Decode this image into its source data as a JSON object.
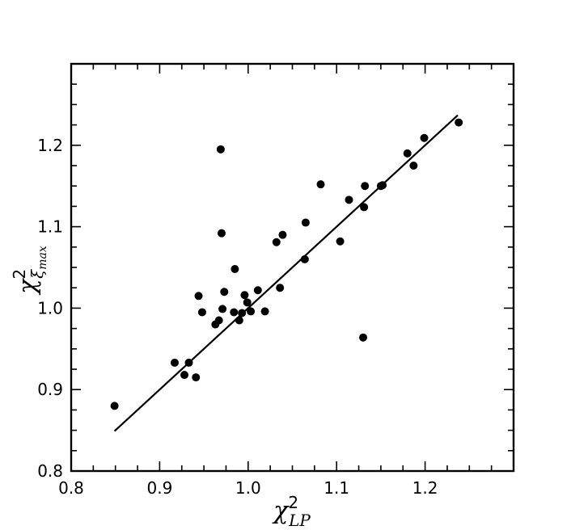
{
  "chart_data": {
    "type": "scatter",
    "xlabel": {
      "base": "χ",
      "sup": "2",
      "sub": "LP"
    },
    "ylabel": {
      "base": "χ",
      "sup": "2",
      "sub": "ξ",
      "subsub": "max"
    },
    "xlim": [
      0.8,
      1.3
    ],
    "ylim": [
      0.8,
      1.3
    ],
    "xticks": [
      "0.8",
      "0.9",
      "1.0",
      "1.1",
      "1.2"
    ],
    "yticks": [
      "0.8",
      "0.9",
      "1.0",
      "1.1",
      "1.2"
    ],
    "grid": false,
    "marker_color": "#000000",
    "points": [
      {
        "x": 0.849,
        "y": 0.88
      },
      {
        "x": 0.917,
        "y": 0.933
      },
      {
        "x": 0.928,
        "y": 0.918
      },
      {
        "x": 0.933,
        "y": 0.933
      },
      {
        "x": 0.941,
        "y": 0.915
      },
      {
        "x": 0.944,
        "y": 1.015
      },
      {
        "x": 0.948,
        "y": 0.995
      },
      {
        "x": 0.963,
        "y": 0.98
      },
      {
        "x": 0.967,
        "y": 0.985
      },
      {
        "x": 0.969,
        "y": 1.195
      },
      {
        "x": 0.97,
        "y": 1.092
      },
      {
        "x": 0.971,
        "y": 0.999
      },
      {
        "x": 0.973,
        "y": 1.02
      },
      {
        "x": 0.984,
        "y": 0.995
      },
      {
        "x": 0.985,
        "y": 1.048
      },
      {
        "x": 0.99,
        "y": 0.985
      },
      {
        "x": 0.993,
        "y": 0.994
      },
      {
        "x": 0.996,
        "y": 1.016
      },
      {
        "x": 0.999,
        "y": 1.007
      },
      {
        "x": 1.003,
        "y": 0.996
      },
      {
        "x": 1.011,
        "y": 1.022
      },
      {
        "x": 1.019,
        "y": 0.996
      },
      {
        "x": 1.032,
        "y": 1.081
      },
      {
        "x": 1.036,
        "y": 1.025
      },
      {
        "x": 1.039,
        "y": 1.09
      },
      {
        "x": 1.064,
        "y": 1.06
      },
      {
        "x": 1.065,
        "y": 1.105
      },
      {
        "x": 1.082,
        "y": 1.152
      },
      {
        "x": 1.104,
        "y": 1.082
      },
      {
        "x": 1.114,
        "y": 1.133
      },
      {
        "x": 1.13,
        "y": 0.964
      },
      {
        "x": 1.131,
        "y": 1.124
      },
      {
        "x": 1.132,
        "y": 1.15
      },
      {
        "x": 1.15,
        "y": 1.15
      },
      {
        "x": 1.152,
        "y": 1.151
      },
      {
        "x": 1.18,
        "y": 1.19
      },
      {
        "x": 1.187,
        "y": 1.175
      },
      {
        "x": 1.199,
        "y": 1.209
      },
      {
        "x": 1.238,
        "y": 1.228
      }
    ],
    "fit_line": {
      "x": [
        0.849,
        1.237
      ],
      "y": [
        0.849,
        1.237
      ]
    }
  }
}
